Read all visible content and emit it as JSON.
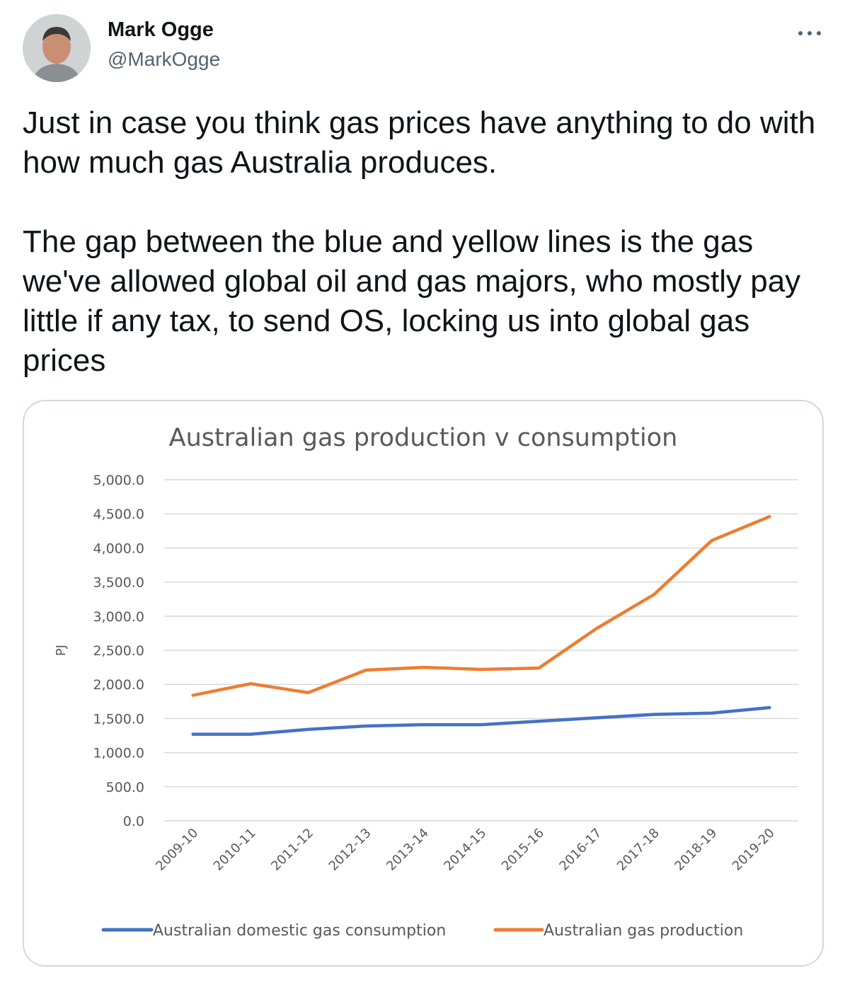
{
  "tweet": {
    "author_name": "Mark Ogge",
    "author_handle": "@MarkOgge",
    "paragraphs": [
      "Just in case you think gas prices have anything to do with how much gas Australia produces.",
      "The gap between the blue and yellow lines is the gas we've allowed global oil and gas majors, who mostly pay little if any tax, to send OS, locking us into global gas prices"
    ]
  },
  "icons": {
    "avatar": "user-photo-avatar",
    "more": "more-options-icon"
  },
  "colors": {
    "name_text": "#0f1419",
    "handle_text": "#536471",
    "card_border": "#cfd9de",
    "consumption_line": "#4472c4",
    "production_line": "#ed7d31",
    "gridline": "#d9d9d9",
    "axis_text": "#595959"
  },
  "chart_data": {
    "type": "line",
    "title": "Australian gas production v consumption",
    "xlabel": "",
    "ylabel": "PJ",
    "ylim": [
      0,
      5000
    ],
    "yticks": [
      "0.0",
      "500.0",
      "1,000.0",
      "1,500.0",
      "2,000.0",
      "2,500.0",
      "3,000.0",
      "3,500.0",
      "4,000.0",
      "4,500.0",
      "5,000.0"
    ],
    "categories": [
      "2009-10",
      "2010-11",
      "2011-12",
      "2012-13",
      "2013-14",
      "2014-15",
      "2015-16",
      "2016-17",
      "2017-18",
      "2018-19",
      "2019-20"
    ],
    "grid": true,
    "legend_position": "bottom",
    "series": [
      {
        "name": "Australian domestic gas consumption",
        "color": "#4472c4",
        "values": [
          1270,
          1270,
          1340,
          1390,
          1410,
          1410,
          1460,
          1510,
          1560,
          1580,
          1660
        ]
      },
      {
        "name": "Australian gas production",
        "color": "#ed7d31",
        "values": [
          1840,
          2010,
          1880,
          2210,
          2250,
          2220,
          2240,
          2820,
          3320,
          4110,
          4460
        ]
      }
    ]
  }
}
